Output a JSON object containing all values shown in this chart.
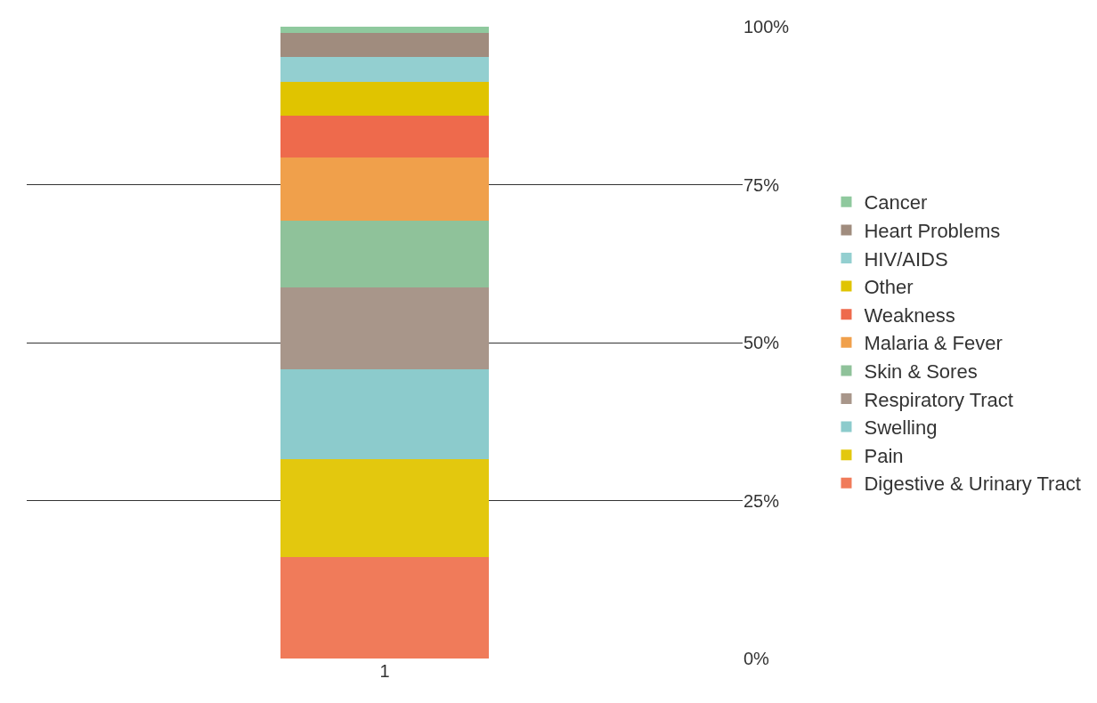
{
  "chart_data": {
    "type": "bar",
    "stacked": true,
    "categories": [
      "1"
    ],
    "series": [
      {
        "name": "Digestive & Urinary Tract",
        "color": "#f07b5a",
        "values": [
          16.0
        ]
      },
      {
        "name": "Pain",
        "color": "#e3c80e",
        "values": [
          15.6
        ]
      },
      {
        "name": "Swelling",
        "color": "#8ccbcc",
        "values": [
          14.2
        ]
      },
      {
        "name": "Respiratory Tract",
        "color": "#a8968a",
        "values": [
          13.0
        ]
      },
      {
        "name": "Skin & Sores",
        "color": "#8fc29a",
        "values": [
          10.5
        ]
      },
      {
        "name": "Malaria & Fever",
        "color": "#f0a04b",
        "values": [
          10.0
        ]
      },
      {
        "name": "Weakness",
        "color": "#ee6a4c",
        "values": [
          6.6
        ]
      },
      {
        "name": "Other",
        "color": "#e0c400",
        "values": [
          5.3
        ]
      },
      {
        "name": "HIV/AIDS",
        "color": "#93cfd0",
        "values": [
          4.0
        ]
      },
      {
        "name": "Heart Problems",
        "color": "#a08c7e",
        "values": [
          3.8
        ]
      },
      {
        "name": "Cancer",
        "color": "#8fc99e",
        "values": [
          1.0
        ]
      }
    ],
    "ylim": [
      0,
      100
    ],
    "yticks": [
      {
        "value": 0,
        "label": "0%"
      },
      {
        "value": 25,
        "label": "25%"
      },
      {
        "value": 50,
        "label": "50%"
      },
      {
        "value": 75,
        "label": "75%"
      },
      {
        "value": 100,
        "label": "100%"
      }
    ],
    "grid": "y",
    "legend": "right"
  }
}
